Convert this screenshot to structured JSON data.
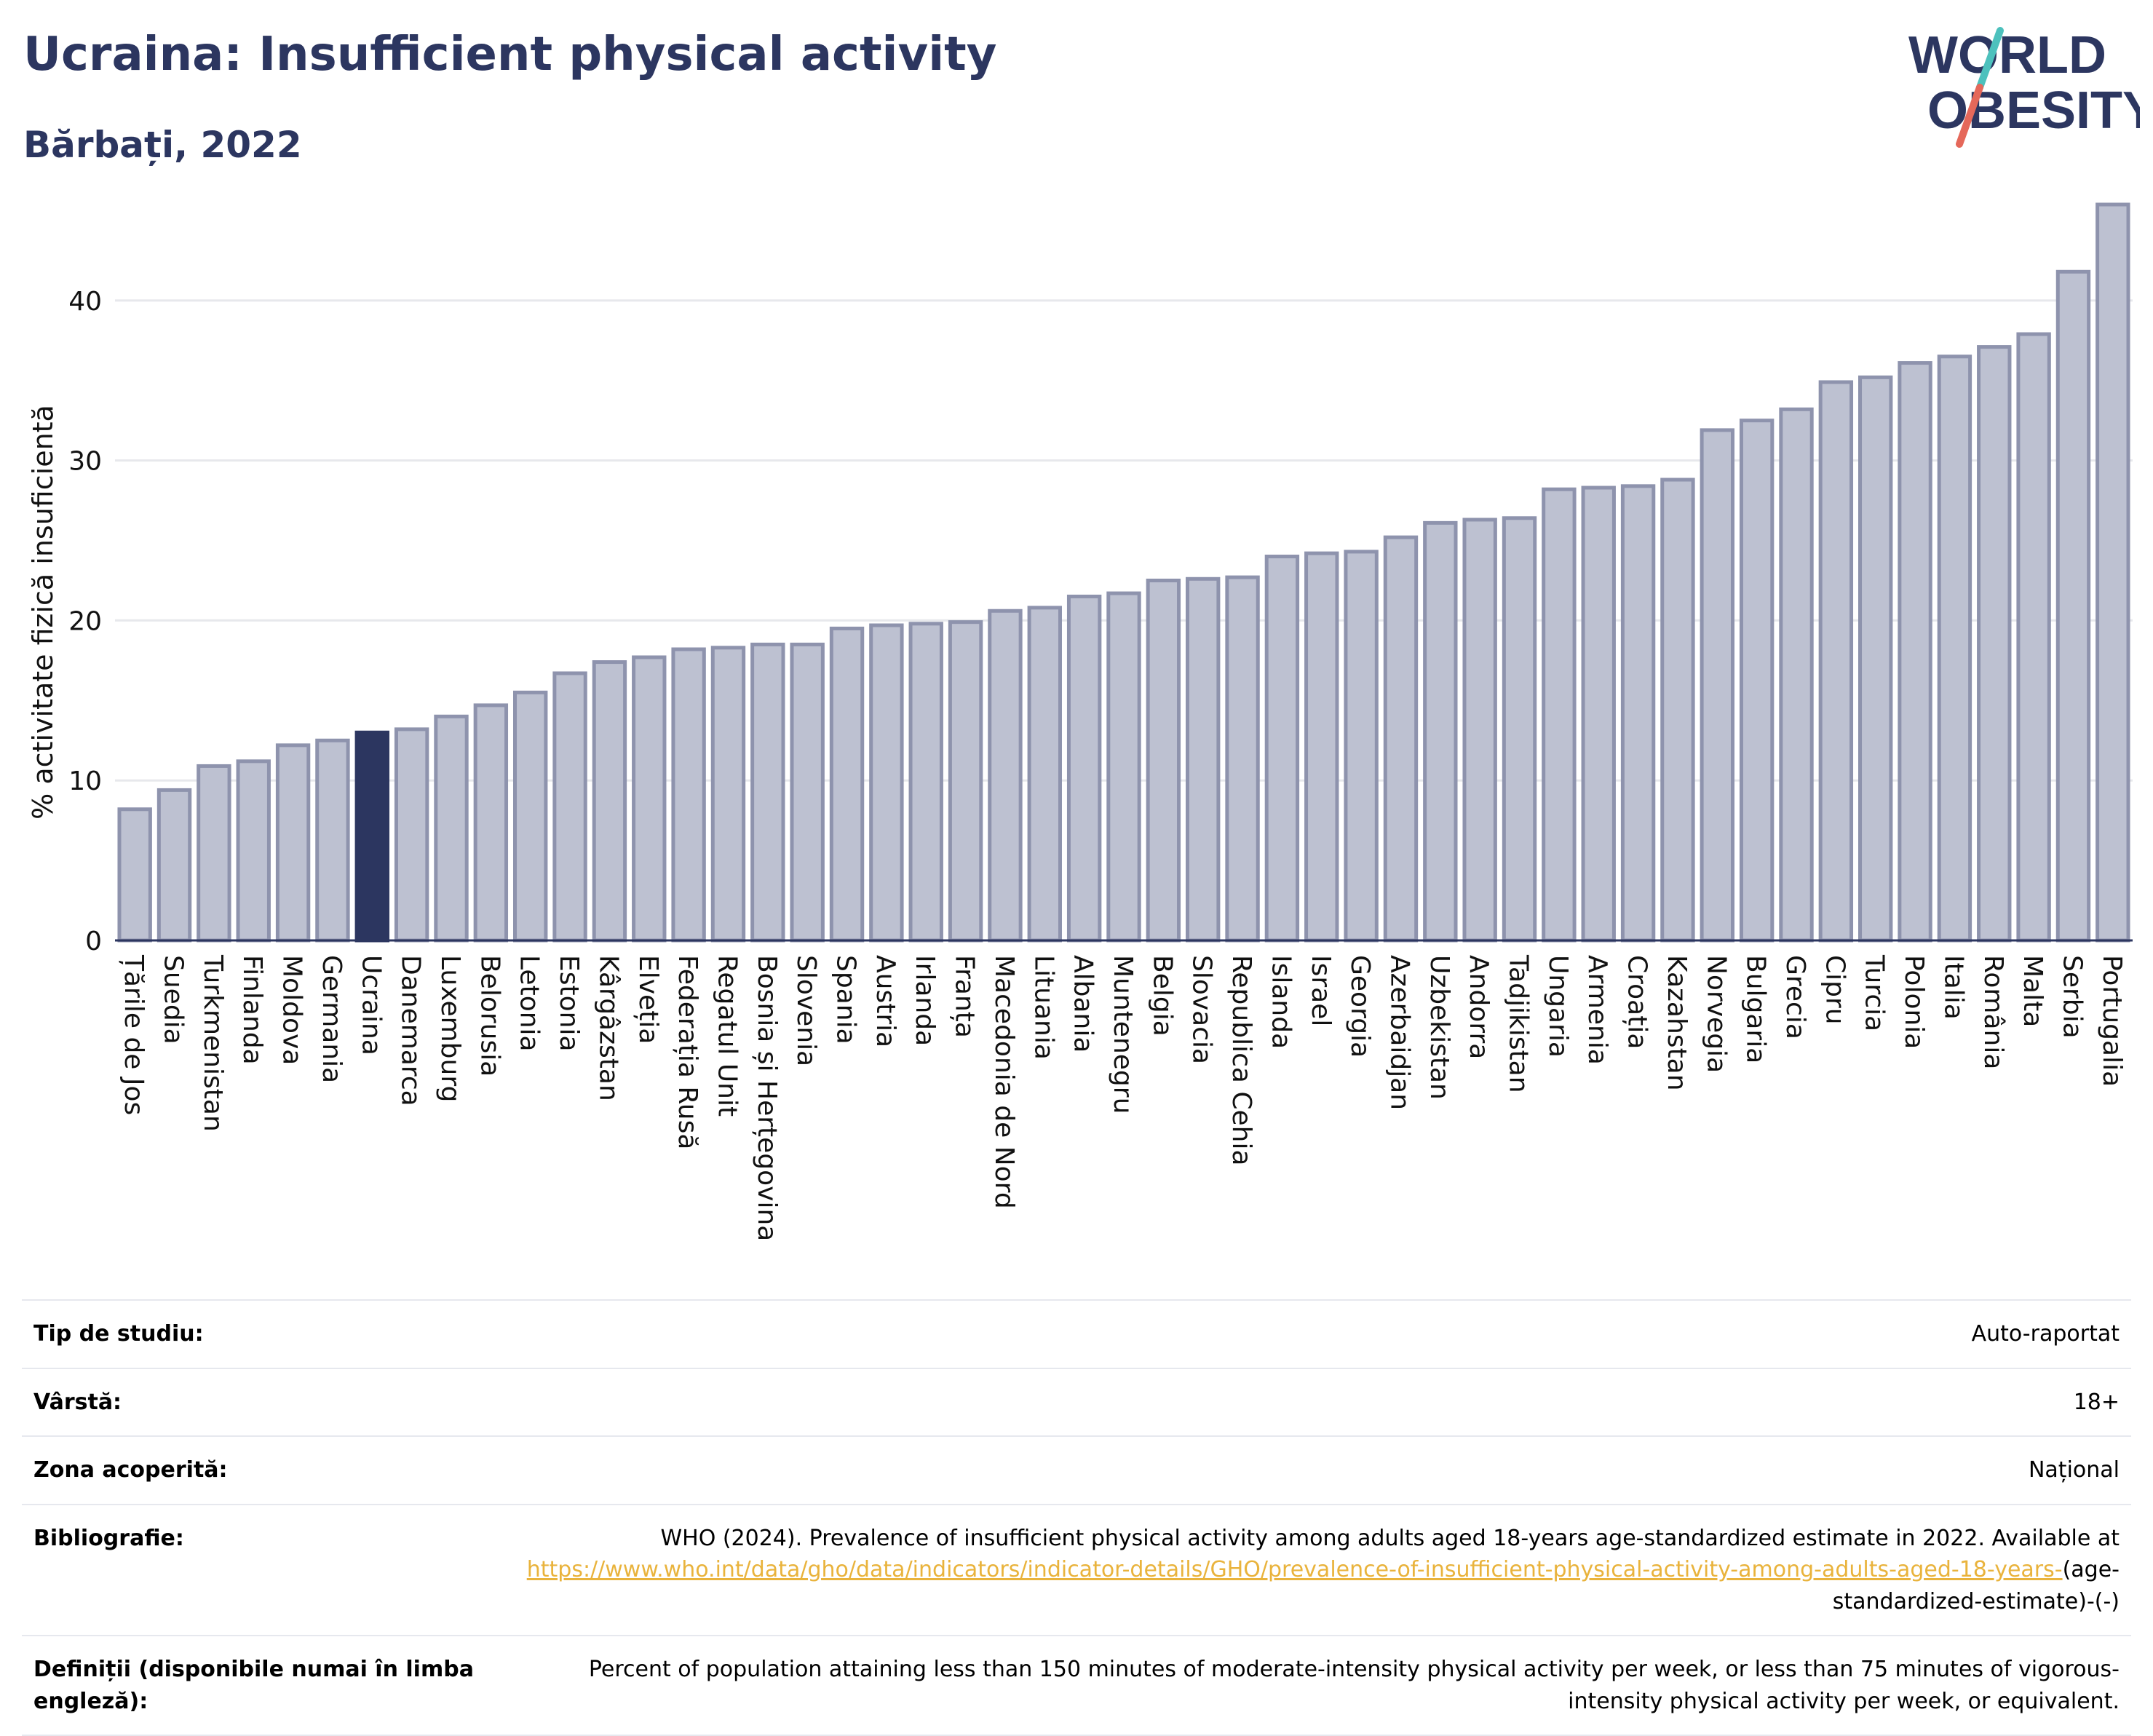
{
  "header": {
    "title": "Ucraina: Insufficient physical activity",
    "subtitle": "Bărbați, 2022"
  },
  "logo": {
    "line1": "WORLD",
    "line2": "OBESITY"
  },
  "colors": {
    "title": "#2c3660",
    "bar": "#bdc1d1",
    "bar_edge": "#8e93ad",
    "highlight": "#2c3660",
    "link": "#e9b33c",
    "logo_slash_red": "#e5685a",
    "logo_slash_teal": "#4dc1bd"
  },
  "chart_data": {
    "type": "bar",
    "title": "",
    "xlabel": "",
    "ylabel": "% activitate fizică insuficientă",
    "ylim": [
      0,
      46.5
    ],
    "yticks": [
      0,
      10,
      20,
      30,
      40
    ],
    "grid": true,
    "highlight": "Ucraina",
    "categories": [
      "Țările de Jos",
      "Suedia",
      "Turkmenistan",
      "Finlanda",
      "Moldova",
      "Germania",
      "Ucraina",
      "Danemarca",
      "Luxemburg",
      "Belorusia",
      "Letonia",
      "Estonia",
      "Kârgâzstan",
      "Elveția",
      "Federația Rusă",
      "Regatul Unit",
      "Bosnia și Herțegovina",
      "Slovenia",
      "Spania",
      "Austria",
      "Irlanda",
      "Franța",
      "Macedonia de Nord",
      "Lituania",
      "Albania",
      "Muntenegru",
      "Belgia",
      "Slovacia",
      "Republica Cehia",
      "Islanda",
      "Israel",
      "Georgia",
      "Azerbaidjan",
      "Uzbekistan",
      "Andorra",
      "Tadjikistan",
      "Ungaria",
      "Armenia",
      "Croația",
      "Kazahstan",
      "Norvegia",
      "Bulgaria",
      "Grecia",
      "Cipru",
      "Turcia",
      "Polonia",
      "Italia",
      "România",
      "Malta",
      "Serbia",
      "Portugalia"
    ],
    "values": [
      8.2,
      9.4,
      10.9,
      11.2,
      12.2,
      12.5,
      13.0,
      13.2,
      14.0,
      14.7,
      15.5,
      16.7,
      17.4,
      17.7,
      18.2,
      18.3,
      18.5,
      18.5,
      19.5,
      19.7,
      19.8,
      19.9,
      20.6,
      20.8,
      21.5,
      21.7,
      22.5,
      22.6,
      22.7,
      24.0,
      24.2,
      24.3,
      25.2,
      26.1,
      26.3,
      26.4,
      28.2,
      28.3,
      28.4,
      28.8,
      31.9,
      32.5,
      33.2,
      34.9,
      35.2,
      36.1,
      36.5,
      37.1,
      37.9,
      41.8,
      46.0
    ]
  },
  "info": {
    "rows": [
      {
        "key": "Tip de studiu:",
        "value": "Auto-raportat"
      },
      {
        "key": "Vârstă:",
        "value": "18+"
      },
      {
        "key": "Zona acoperită:",
        "value": "Național"
      }
    ],
    "bibliography": {
      "key": "Bibliografie:",
      "text": "WHO (2024). Prevalence of insufficient physical activity among adults aged 18-years age-standardized estimate in 2022. Available at",
      "link": "https://www.who.int/data/gho/data/indicators/indicator-details/GHO/prevalence-of-insufficient-physical-activity-among-adults-aged-18-years-",
      "suffix": "(age-standardized-estimate)-(-)"
    },
    "definitions": {
      "key": "Definiții (disponibile numai în limba engleză):",
      "value": "Percent of population attaining less than 150 minutes of moderate-intensity physical activity per week, or less than 75 minutes of vigorous-intensity physical activity per week, or equivalent."
    }
  }
}
